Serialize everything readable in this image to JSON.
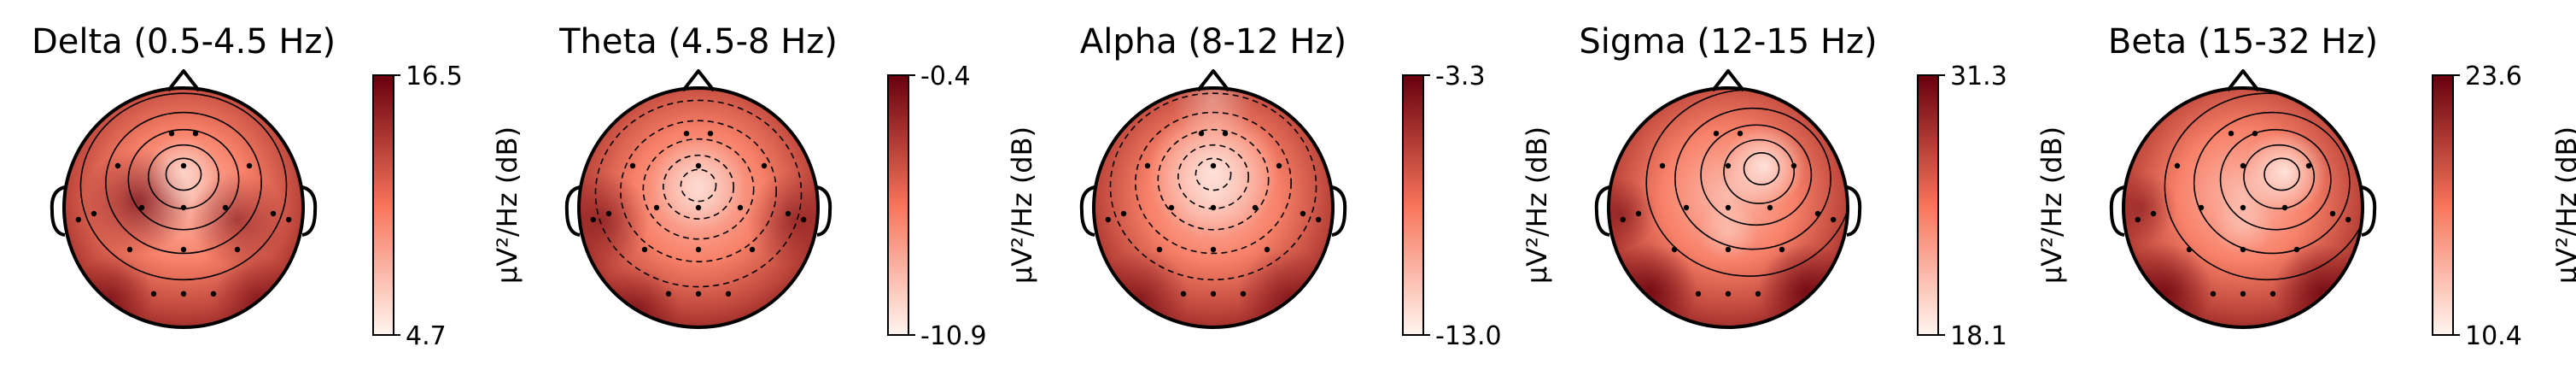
{
  "chart_data": [
    {
      "type": "heatmap",
      "subtype": "eeg-topomap",
      "title": "Delta (0.5-4.5 Hz)",
      "colorbar": {
        "label": "µV²/Hz (dB)",
        "vmax": 16.5,
        "vmin": 4.7,
        "max_label": "16.5",
        "min_label": "4.7"
      },
      "contour_style": "solid",
      "hotspots": [
        {
          "u": -0.38,
          "v": -0.05,
          "w": 0.7,
          "r": 0.45
        },
        {
          "u": 0.45,
          "v": 0.1,
          "w": 0.55,
          "r": 0.4
        },
        {
          "u": -0.6,
          "v": 0.75,
          "w": 0.55,
          "r": 0.35
        },
        {
          "u": 0.6,
          "v": 0.75,
          "w": 0.45,
          "r": 0.35
        }
      ],
      "light_spots": [
        {
          "u": 0.0,
          "v": -0.3,
          "w": 0.55,
          "r": 0.3
        }
      ]
    },
    {
      "type": "heatmap",
      "subtype": "eeg-topomap",
      "title": "Theta (4.5-8 Hz)",
      "colorbar": {
        "label": "µV²/Hz (dB)",
        "vmax": -0.4,
        "vmin": -10.9,
        "max_label": "-0.4",
        "min_label": "-10.9"
      },
      "contour_style": "dashed",
      "hotspots": [
        {
          "u": -0.8,
          "v": 0.1,
          "w": 0.55,
          "r": 0.4
        },
        {
          "u": 0.8,
          "v": 0.1,
          "w": 0.5,
          "r": 0.4
        },
        {
          "u": -0.5,
          "v": 0.85,
          "w": 0.5,
          "r": 0.35
        }
      ],
      "light_spots": [
        {
          "u": 0.0,
          "v": -0.2,
          "w": 0.6,
          "r": 0.4
        }
      ]
    },
    {
      "type": "heatmap",
      "subtype": "eeg-topomap",
      "title": "Alpha (8-12 Hz)",
      "colorbar": {
        "label": "µV²/Hz (dB)",
        "vmax": -3.3,
        "vmin": -13.0,
        "max_label": "-3.3",
        "min_label": "-13.0"
      },
      "contour_style": "dashed",
      "hotspots": [
        {
          "u": -0.6,
          "v": 0.75,
          "w": 0.5,
          "r": 0.4
        },
        {
          "u": 0.6,
          "v": 0.75,
          "w": 0.5,
          "r": 0.4
        }
      ],
      "light_spots": [
        {
          "u": 0.0,
          "v": -0.3,
          "w": 0.75,
          "r": 0.55
        },
        {
          "u": 0.0,
          "v": -0.9,
          "w": 0.35,
          "r": 0.35
        }
      ]
    },
    {
      "type": "heatmap",
      "subtype": "eeg-topomap",
      "title": "Sigma (12-15 Hz)",
      "colorbar": {
        "label": "µV²/Hz (dB)",
        "vmax": 31.3,
        "vmin": 18.1,
        "max_label": "31.3",
        "min_label": "18.1"
      },
      "contour_style": "solid",
      "hotspots": [
        {
          "u": -0.65,
          "v": 0.7,
          "w": 0.8,
          "r": 0.4
        },
        {
          "u": 0.65,
          "v": 0.7,
          "w": 0.8,
          "r": 0.4
        },
        {
          "u": -0.9,
          "v": 0.05,
          "w": 0.5,
          "r": 0.3
        }
      ],
      "light_spots": [
        {
          "u": 0.3,
          "v": -0.35,
          "w": 0.8,
          "r": 0.35
        },
        {
          "u": 0.0,
          "v": 0.2,
          "w": 0.35,
          "r": 0.25
        }
      ]
    },
    {
      "type": "heatmap",
      "subtype": "eeg-topomap",
      "title": "Beta (15-32 Hz)",
      "colorbar": {
        "label": "µV²/Hz (dB)",
        "vmax": 23.6,
        "vmin": 10.4,
        "max_label": "23.6",
        "min_label": "10.4"
      },
      "contour_style": "solid",
      "hotspots": [
        {
          "u": -0.65,
          "v": 0.7,
          "w": 0.75,
          "r": 0.4
        },
        {
          "u": 0.65,
          "v": 0.7,
          "w": 0.75,
          "r": 0.4
        },
        {
          "u": -0.85,
          "v": 0.0,
          "w": 0.45,
          "r": 0.3
        }
      ],
      "light_spots": [
        {
          "u": 0.35,
          "v": -0.3,
          "w": 0.8,
          "r": 0.35
        },
        {
          "u": 0.0,
          "v": 0.15,
          "w": 0.3,
          "r": 0.25
        }
      ]
    }
  ],
  "sensors": [
    {
      "u": -0.1,
      "v": -0.62
    },
    {
      "u": 0.1,
      "v": -0.62
    },
    {
      "u": -0.55,
      "v": -0.35
    },
    {
      "u": 0.0,
      "v": -0.35
    },
    {
      "u": 0.55,
      "v": -0.35
    },
    {
      "u": -0.75,
      "v": 0.05
    },
    {
      "u": -0.35,
      "v": 0.0
    },
    {
      "u": 0.0,
      "v": 0.0
    },
    {
      "u": 0.35,
      "v": 0.0
    },
    {
      "u": 0.75,
      "v": 0.05
    },
    {
      "u": -0.45,
      "v": 0.35
    },
    {
      "u": 0.0,
      "v": 0.35
    },
    {
      "u": 0.45,
      "v": 0.35
    },
    {
      "u": -0.25,
      "v": 0.72
    },
    {
      "u": 0.0,
      "v": 0.72
    },
    {
      "u": 0.25,
      "v": 0.72
    },
    {
      "u": -0.88,
      "v": 0.1
    },
    {
      "u": 0.88,
      "v": 0.1
    }
  ],
  "colormap": {
    "name": "Reds",
    "low": "#fff5f0",
    "mid": "#f7745a",
    "high": "#67000d"
  },
  "outline_color": "#000000"
}
